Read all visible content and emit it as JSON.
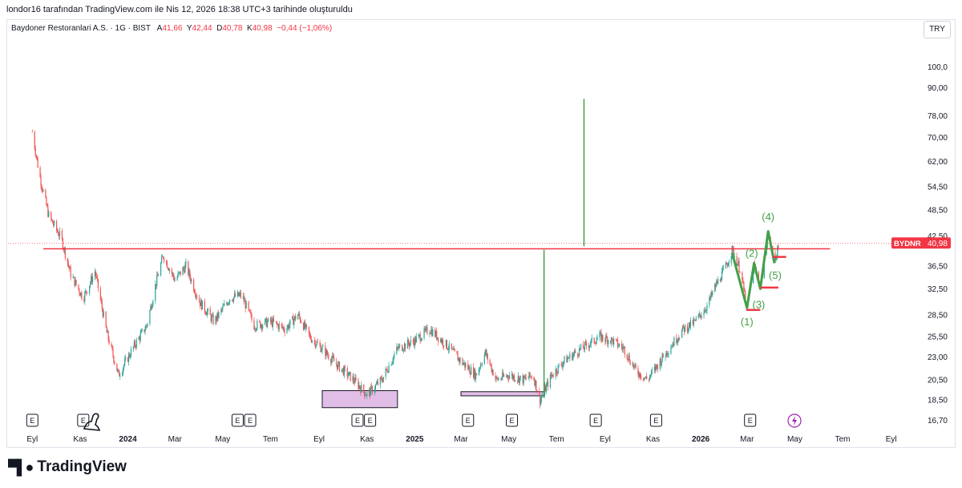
{
  "caption": "londor16 tarafından TradingView.com ile Nis 12, 2026 18:38 UTC+3 tarihinde oluşturuldu",
  "legend": {
    "symbol_line": "Baydoner Restoranlari A.S. · 1G · BIST",
    "o_label": "A",
    "o_value": "41,66",
    "h_label": "Y",
    "h_value": "42,44",
    "l_label": "D",
    "l_value": "40,78",
    "c_label": "K",
    "c_value": "40,98",
    "change": "−0,44 (−1,06%)"
  },
  "currency": "TRY",
  "brand": "TradingView",
  "colors": {
    "up": "#26a69a",
    "down": "#ef5350",
    "resistance": "#f23645",
    "wave": "#43a047",
    "box": "#e1bee7"
  },
  "chart_data": {
    "type": "candlestick",
    "symbol": "BYDNR",
    "last_price_label": "40,98",
    "last_price": 40.98,
    "y_scale": "log",
    "ylim": [
      16.0,
      110.0
    ],
    "y_ticks": [
      {
        "v": 100.0,
        "label": "100,0"
      },
      {
        "v": 90.0,
        "label": "90,00"
      },
      {
        "v": 78.0,
        "label": "78,00"
      },
      {
        "v": 70.0,
        "label": "70,00"
      },
      {
        "v": 62.0,
        "label": "62,00"
      },
      {
        "v": 54.5,
        "label": "54,50"
      },
      {
        "v": 48.5,
        "label": "48,50"
      },
      {
        "v": 42.5,
        "label": "42,50"
      },
      {
        "v": 36.5,
        "label": "36,50"
      },
      {
        "v": 32.5,
        "label": "32,50"
      },
      {
        "v": 28.5,
        "label": "28,50"
      },
      {
        "v": 25.5,
        "label": "25,50"
      },
      {
        "v": 23.0,
        "label": "23,00"
      },
      {
        "v": 20.5,
        "label": "20,50"
      },
      {
        "v": 18.5,
        "label": "18,50"
      },
      {
        "v": 16.7,
        "label": "16,70"
      }
    ],
    "x_range": [
      "2023-08-01",
      "2026-09-30"
    ],
    "x_ticks": [
      {
        "d": "2023-09-01",
        "label": "Eyl",
        "bold": false
      },
      {
        "d": "2023-11-01",
        "label": "Kas",
        "bold": false
      },
      {
        "d": "2024-01-01",
        "label": "2024",
        "bold": true
      },
      {
        "d": "2024-03-01",
        "label": "Mar",
        "bold": false
      },
      {
        "d": "2024-05-01",
        "label": "May",
        "bold": false
      },
      {
        "d": "2024-07-01",
        "label": "Tem",
        "bold": false
      },
      {
        "d": "2024-09-01",
        "label": "Eyl",
        "bold": false
      },
      {
        "d": "2024-11-01",
        "label": "Kas",
        "bold": false
      },
      {
        "d": "2025-01-01",
        "label": "2025",
        "bold": true
      },
      {
        "d": "2025-03-01",
        "label": "Mar",
        "bold": false
      },
      {
        "d": "2025-05-01",
        "label": "May",
        "bold": false
      },
      {
        "d": "2025-07-01",
        "label": "Tem",
        "bold": false
      },
      {
        "d": "2025-09-01",
        "label": "Eyl",
        "bold": false
      },
      {
        "d": "2025-11-01",
        "label": "Kas",
        "bold": false
      },
      {
        "d": "2026-01-01",
        "label": "2026",
        "bold": true
      },
      {
        "d": "2026-03-01",
        "label": "Mar",
        "bold": false
      },
      {
        "d": "2026-05-01",
        "label": "May",
        "bold": false
      },
      {
        "d": "2026-07-01",
        "label": "Tem",
        "bold": false
      },
      {
        "d": "2026-09-01",
        "label": "Eyl",
        "bold": false
      }
    ],
    "price_path": [
      {
        "d": "2023-09-01",
        "v": 72.0
      },
      {
        "d": "2023-09-10",
        "v": 58.0
      },
      {
        "d": "2023-09-22",
        "v": 47.0
      },
      {
        "d": "2023-10-08",
        "v": 42.0
      },
      {
        "d": "2023-10-20",
        "v": 35.0
      },
      {
        "d": "2023-11-05",
        "v": 31.0
      },
      {
        "d": "2023-11-20",
        "v": 35.5
      },
      {
        "d": "2023-12-05",
        "v": 26.0
      },
      {
        "d": "2023-12-20",
        "v": 21.0
      },
      {
        "d": "2024-01-10",
        "v": 24.5
      },
      {
        "d": "2024-01-25",
        "v": 27.0
      },
      {
        "d": "2024-02-05",
        "v": 33.0
      },
      {
        "d": "2024-02-15",
        "v": 38.5
      },
      {
        "d": "2024-03-01",
        "v": 34.0
      },
      {
        "d": "2024-03-15",
        "v": 36.5
      },
      {
        "d": "2024-04-01",
        "v": 30.5
      },
      {
        "d": "2024-04-20",
        "v": 27.5
      },
      {
        "d": "2024-05-10",
        "v": 31.0
      },
      {
        "d": "2024-05-25",
        "v": 31.5
      },
      {
        "d": "2024-06-10",
        "v": 27.0
      },
      {
        "d": "2024-07-01",
        "v": 27.5
      },
      {
        "d": "2024-07-20",
        "v": 26.5
      },
      {
        "d": "2024-08-05",
        "v": 28.5
      },
      {
        "d": "2024-08-20",
        "v": 25.5
      },
      {
        "d": "2024-09-05",
        "v": 24.0
      },
      {
        "d": "2024-09-25",
        "v": 22.0
      },
      {
        "d": "2024-10-15",
        "v": 20.5
      },
      {
        "d": "2024-11-01",
        "v": 19.0
      },
      {
        "d": "2024-11-20",
        "v": 20.5
      },
      {
        "d": "2024-12-10",
        "v": 24.0
      },
      {
        "d": "2025-01-01",
        "v": 25.0
      },
      {
        "d": "2025-01-20",
        "v": 26.5
      },
      {
        "d": "2025-02-10",
        "v": 24.5
      },
      {
        "d": "2025-03-01",
        "v": 22.5
      },
      {
        "d": "2025-03-20",
        "v": 21.0
      },
      {
        "d": "2025-04-01",
        "v": 23.5
      },
      {
        "d": "2025-04-15",
        "v": 20.5
      },
      {
        "d": "2025-05-01",
        "v": 21.0
      },
      {
        "d": "2025-05-20",
        "v": 20.5
      },
      {
        "d": "2025-06-01",
        "v": 21.0
      },
      {
        "d": "2025-06-10",
        "v": 18.5
      },
      {
        "d": "2025-06-25",
        "v": 21.0
      },
      {
        "d": "2025-07-10",
        "v": 22.5
      },
      {
        "d": "2025-07-25",
        "v": 23.5
      },
      {
        "d": "2025-08-10",
        "v": 24.5
      },
      {
        "d": "2025-08-25",
        "v": 25.5
      },
      {
        "d": "2025-09-10",
        "v": 25.0
      },
      {
        "d": "2025-09-25",
        "v": 24.0
      },
      {
        "d": "2025-10-10",
        "v": 21.5
      },
      {
        "d": "2025-10-25",
        "v": 20.5
      },
      {
        "d": "2025-11-10",
        "v": 22.5
      },
      {
        "d": "2025-11-25",
        "v": 24.5
      },
      {
        "d": "2025-12-10",
        "v": 26.5
      },
      {
        "d": "2025-12-25",
        "v": 27.5
      },
      {
        "d": "2026-01-10",
        "v": 30.0
      },
      {
        "d": "2026-01-20",
        "v": 33.0
      },
      {
        "d": "2026-02-01",
        "v": 36.0
      },
      {
        "d": "2026-02-10",
        "v": 39.5
      },
      {
        "d": "2026-02-20",
        "v": 36.0
      },
      {
        "d": "2026-03-01",
        "v": 29.5
      },
      {
        "d": "2026-03-10",
        "v": 36.5
      },
      {
        "d": "2026-03-18",
        "v": 33.0
      },
      {
        "d": "2026-03-28",
        "v": 43.0
      },
      {
        "d": "2026-04-05",
        "v": 37.5
      },
      {
        "d": "2026-04-12",
        "v": 40.98
      }
    ],
    "resistance": {
      "v": 39.8,
      "from": "2023-09-15",
      "to": "2026-06-15"
    },
    "vertical_lines": [
      {
        "d": "2025-06-15",
        "from": 18.7,
        "to": 39.6
      },
      {
        "d": "2025-08-05",
        "from": 40.3,
        "to": 85.0
      }
    ],
    "boxes": [
      {
        "from": "2024-09-05",
        "to": "2024-12-10",
        "low": 17.8,
        "high": 19.4
      },
      {
        "from": "2025-03-01",
        "to": "2025-06-15",
        "low": 18.9,
        "high": 19.3
      }
    ],
    "wave_path": [
      {
        "d": "2026-02-10",
        "v": 39.0
      },
      {
        "d": "2026-03-01",
        "v": 29.5
      },
      {
        "d": "2026-03-10",
        "v": 37.0
      },
      {
        "d": "2026-03-18",
        "v": 32.5
      },
      {
        "d": "2026-03-28",
        "v": 43.5
      },
      {
        "d": "2026-04-05",
        "v": 37.0
      }
    ],
    "wave_labels": [
      {
        "d": "2026-03-01",
        "v": 27.0,
        "label": "(1)"
      },
      {
        "d": "2026-03-07",
        "v": 38.2,
        "label": "(2)"
      },
      {
        "d": "2026-03-16",
        "v": 29.5,
        "label": "(3)"
      },
      {
        "d": "2026-03-28",
        "v": 46.0,
        "label": "(4)"
      },
      {
        "d": "2026-04-06",
        "v": 34.2,
        "label": "(5)"
      }
    ],
    "level_marks": [
      {
        "v": 38.2,
        "from": "2026-04-03",
        "to": "2026-04-20"
      },
      {
        "v": 32.7,
        "from": "2026-03-18",
        "to": "2026-04-10"
      },
      {
        "v": 29.2,
        "from": "2026-02-28",
        "to": "2026-03-18"
      }
    ],
    "events": [
      {
        "d": "2023-09-01",
        "label": "E"
      },
      {
        "d": "2023-11-05",
        "label": "E"
      },
      {
        "d": "2024-05-20",
        "label": "E"
      },
      {
        "d": "2024-06-05",
        "label": "E"
      },
      {
        "d": "2024-10-20",
        "label": "E"
      },
      {
        "d": "2024-11-05",
        "label": "E"
      },
      {
        "d": "2025-03-10",
        "label": "E"
      },
      {
        "d": "2025-05-05",
        "label": "E"
      },
      {
        "d": "2025-08-20",
        "label": "E"
      },
      {
        "d": "2025-11-05",
        "label": "E"
      },
      {
        "d": "2026-03-05",
        "label": "E"
      }
    ]
  }
}
